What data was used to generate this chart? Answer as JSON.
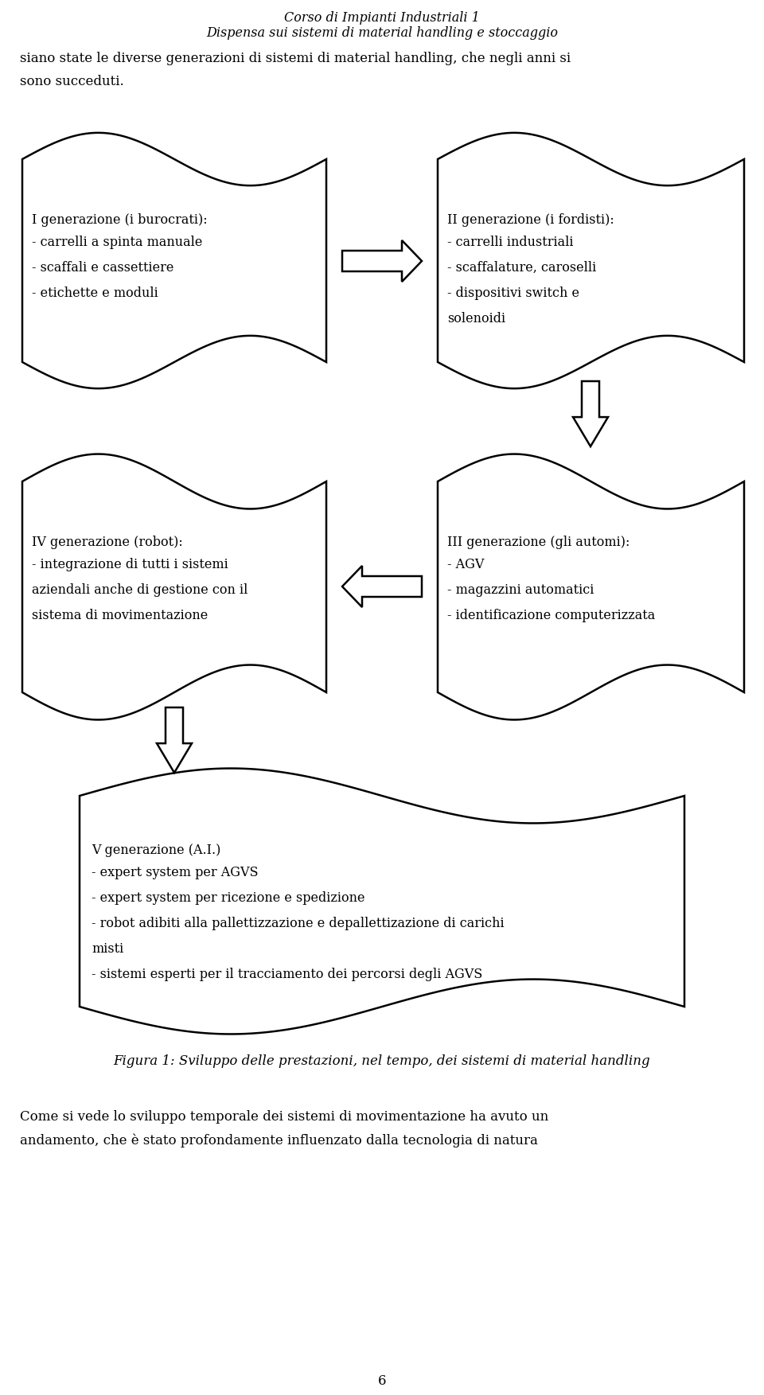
{
  "title_line1": "Corso di Impianti Industriali 1",
  "title_line2": "Dispensa sui sistemi di material handling e stoccaggio",
  "intro_text": "siano state le diverse generazioni di sistemi di material handling, che negli anni si\nsono succeduti.",
  "box1_title": "I generazione (i burocrati):",
  "box1_lines": [
    "- carrelli a spinta manuale",
    "- scaffali e cassettiere",
    "- etichette e moduli"
  ],
  "box2_title": "II generazione (i fordisti):",
  "box2_lines": [
    "- carrelli industriali",
    "- scaffalature, caroselli",
    "- dispositivi switch e",
    "solenoidi"
  ],
  "box3_title": "IV generazione (robot):",
  "box3_lines": [
    "- integrazione di tutti i sistemi",
    "aziendali anche di gestione con il",
    "sistema di movimentazione"
  ],
  "box4_title": "III generazione (gli automi):",
  "box4_lines": [
    "- AGV",
    "- magazzini automatici",
    "- identificazione computerizzata"
  ],
  "box5_title": "V generazione (A.I.)",
  "box5_lines": [
    "- expert system per AGVS",
    "- expert system per ricezione e spedizione",
    "- robot adibiti alla pallettizzazione e depallettizazione di carichi",
    "misti",
    "- sistemi esperti per il tracciamento dei percorsi degli AGVS"
  ],
  "caption": "Figura 1: Sviluppo delle prestazioni, nel tempo, dei sistemi di material handling",
  "footer_text": "Come si vede lo sviluppo temporale dei sistemi di movimentazione ha avuto un\nandamento, che è stato profondamente influenzato dalla tecnologia di natura",
  "page_number": "6",
  "bg_color": "#ffffff",
  "text_color": "#000000",
  "line_color": "#000000"
}
